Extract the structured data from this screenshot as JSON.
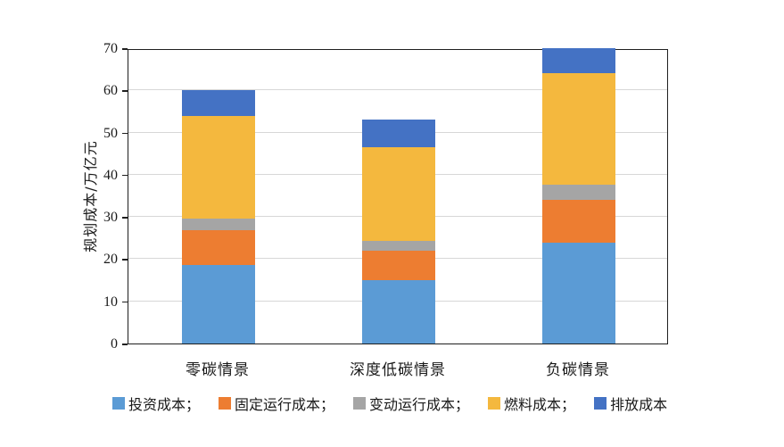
{
  "chart_data": {
    "type": "bar",
    "stacked": true,
    "title": "",
    "xlabel": "",
    "ylabel": "规划成本/万亿元",
    "ylim": [
      0,
      70
    ],
    "yticks": [
      0,
      10,
      20,
      30,
      40,
      50,
      60,
      70
    ],
    "grid": true,
    "legend_position": "bottom",
    "categories": [
      "零碳情景",
      "深度低碳情景",
      "负碳情景"
    ],
    "series": [
      {
        "key": "investment-cost",
        "name": "投资成本",
        "legend_label": "投资成本；",
        "color": "#5B9BD5",
        "values": [
          18.6,
          15.0,
          23.8
        ]
      },
      {
        "key": "fixed-operating-cost",
        "name": "固定运行成本",
        "legend_label": "固定运行成本；",
        "color": "#ED7D31",
        "values": [
          8.2,
          7.0,
          10.3
        ]
      },
      {
        "key": "variable-operating-cost",
        "name": "变动运行成本",
        "legend_label": "变动运行成本；",
        "color": "#A5A5A5",
        "values": [
          2.9,
          2.3,
          3.6
        ]
      },
      {
        "key": "fuel-cost",
        "name": "燃料成本",
        "legend_label": "燃料成本；",
        "color": "#F4B83E",
        "values": [
          24.3,
          22.2,
          26.3
        ]
      },
      {
        "key": "emission-cost",
        "name": "排放成本",
        "legend_label": "排放成本",
        "color": "#4472C4",
        "values": [
          6.0,
          6.5,
          6.0
        ]
      }
    ],
    "totals": [
      60.0,
      53.0,
      70.0
    ]
  },
  "style_colors": {
    "gridline": "#d7d7d7",
    "frame": "#1f1f1f",
    "text": "#1a1a1a",
    "background": "#ffffff"
  }
}
